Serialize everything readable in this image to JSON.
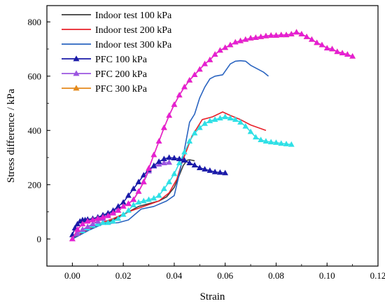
{
  "chart_data": {
    "type": "line",
    "xlabel": "Strain",
    "ylabel": "Stress difference / kPa",
    "xlim": [
      -0.01,
      0.12
    ],
    "ylim": [
      -100,
      860
    ],
    "xticks": [
      "0.00",
      "0.02",
      "0.04",
      "0.06",
      "0.08",
      "0.10",
      "0.12"
    ],
    "yticks": [
      "0",
      "200",
      "400",
      "600",
      "800"
    ],
    "legend_position": "top-left",
    "series": [
      {
        "name": "Indoor test 100 kPa",
        "color": "#3d3d3d",
        "marker": "none",
        "x": [
          0.0,
          0.004,
          0.01,
          0.016,
          0.02,
          0.026,
          0.03,
          0.034,
          0.037,
          0.04,
          0.042,
          0.0435,
          0.045,
          0.046,
          0.047,
          0.048
        ],
        "y": [
          0,
          20,
          50,
          70,
          90,
          120,
          130,
          140,
          155,
          190,
          235,
          270,
          290,
          292,
          290,
          288
        ]
      },
      {
        "name": "Indoor test 200 kPa",
        "color": "#e8202a",
        "marker": "none",
        "x": [
          0.0,
          0.004,
          0.01,
          0.016,
          0.022,
          0.028,
          0.034,
          0.038,
          0.041,
          0.043,
          0.045,
          0.047,
          0.049,
          0.051,
          0.055,
          0.059,
          0.062,
          0.066,
          0.07,
          0.076
        ],
        "y": [
          0,
          25,
          55,
          75,
          100,
          120,
          140,
          170,
          220,
          280,
          330,
          380,
          410,
          440,
          450,
          468,
          455,
          440,
          420,
          400
        ]
      },
      {
        "name": "Indoor test 300 kPa",
        "color": "#2a64c0",
        "marker": "none",
        "x": [
          0.0,
          0.006,
          0.012,
          0.018,
          0.022,
          0.027,
          0.032,
          0.037,
          0.04,
          0.042,
          0.044,
          0.046,
          0.048,
          0.05,
          0.052,
          0.054,
          0.056,
          0.059,
          0.062,
          0.064,
          0.066,
          0.068,
          0.07,
          0.073,
          0.075,
          0.077
        ],
        "y": [
          0,
          30,
          55,
          60,
          70,
          110,
          120,
          140,
          160,
          240,
          330,
          430,
          460,
          520,
          560,
          590,
          600,
          605,
          645,
          655,
          657,
          655,
          640,
          625,
          615,
          600
        ]
      },
      {
        "name": "PFC 100 kPa",
        "color": "#1a1aa8",
        "marker": "triangle",
        "x": [
          0.0,
          0.001,
          0.002,
          0.003,
          0.004,
          0.005,
          0.006,
          0.008,
          0.01,
          0.012,
          0.014,
          0.016,
          0.018,
          0.02,
          0.022,
          0.024,
          0.026,
          0.028,
          0.03,
          0.032,
          0.034,
          0.036,
          0.038,
          0.04,
          0.042,
          0.044,
          0.046,
          0.048,
          0.05,
          0.052,
          0.054,
          0.056,
          0.058,
          0.06
        ],
        "y": [
          15,
          40,
          55,
          65,
          70,
          70,
          72,
          75,
          80,
          88,
          95,
          105,
          120,
          135,
          160,
          185,
          210,
          235,
          255,
          270,
          285,
          295,
          300,
          298,
          295,
          290,
          280,
          272,
          262,
          257,
          252,
          247,
          245,
          243
        ]
      },
      {
        "name": "PFC 200 kPa",
        "color": "#9b55e0",
        "marker": "triangle",
        "x": [
          0.0,
          0.002,
          0.004,
          0.006,
          0.008,
          0.01,
          0.012,
          0.014,
          0.016,
          0.018,
          0.02,
          0.022,
          0.024,
          0.026,
          0.028,
          0.03,
          0.032,
          0.034,
          0.036,
          0.038
        ],
        "y": [
          0,
          20,
          35,
          45,
          55,
          65,
          75,
          90,
          100,
          115,
          120,
          130,
          145,
          175,
          210,
          250,
          268,
          275,
          280,
          282
        ]
      },
      {
        "name": "PFC 300 kPa",
        "color": "#e48a1c",
        "marker": "triangle",
        "x": [
          0.0,
          0.002,
          0.004,
          0.006,
          0.008,
          0.01,
          0.012,
          0.014,
          0.016,
          0.018,
          0.02,
          0.022,
          0.024,
          0.026,
          0.028,
          0.03,
          0.032,
          0.034,
          0.036,
          0.038,
          0.04,
          0.042,
          0.044,
          0.046,
          0.048,
          0.05,
          0.052,
          0.054,
          0.056,
          0.058,
          0.06,
          0.062,
          0.064,
          0.066,
          0.068,
          0.07,
          0.072,
          0.074,
          0.076,
          0.078,
          0.08,
          0.082,
          0.084,
          0.086,
          0.088,
          0.09,
          0.092,
          0.094,
          0.096,
          0.098,
          0.1,
          0.102,
          0.104,
          0.106,
          0.108,
          0.11
        ],
        "y": [
          0,
          35,
          55,
          65,
          70,
          75,
          80,
          85,
          95,
          105,
          120,
          130,
          145,
          175,
          210,
          260,
          310,
          360,
          410,
          455,
          495,
          530,
          560,
          585,
          605,
          625,
          645,
          660,
          680,
          695,
          705,
          715,
          725,
          730,
          735,
          740,
          742,
          745,
          748,
          750,
          750,
          752,
          752,
          755,
          762,
          755,
          745,
          735,
          723,
          715,
          703,
          700,
          690,
          685,
          680,
          673
        ]
      },
      {
        "name": "",
        "color": "#e51fd4",
        "marker": "triangle",
        "x": [
          0.0,
          0.002,
          0.004,
          0.006,
          0.008,
          0.01,
          0.012,
          0.014,
          0.016,
          0.018,
          0.02,
          0.022,
          0.024,
          0.026,
          0.028,
          0.03,
          0.032,
          0.034,
          0.036,
          0.038,
          0.04,
          0.042,
          0.044,
          0.046,
          0.048,
          0.05,
          0.052,
          0.054,
          0.056,
          0.058,
          0.06,
          0.062,
          0.064,
          0.066,
          0.068,
          0.07,
          0.072,
          0.074,
          0.076,
          0.078,
          0.08,
          0.082,
          0.084,
          0.086,
          0.088,
          0.09,
          0.092,
          0.094,
          0.096,
          0.098,
          0.1,
          0.102,
          0.104,
          0.106,
          0.108,
          0.11
        ],
        "y": [
          0,
          35,
          55,
          65,
          70,
          75,
          80,
          85,
          95,
          105,
          120,
          130,
          145,
          175,
          210,
          260,
          310,
          360,
          410,
          455,
          495,
          530,
          560,
          585,
          605,
          625,
          645,
          660,
          680,
          695,
          705,
          715,
          725,
          730,
          735,
          740,
          742,
          745,
          748,
          750,
          750,
          752,
          752,
          755,
          762,
          755,
          745,
          735,
          723,
          715,
          703,
          700,
          690,
          685,
          680,
          673
        ]
      },
      {
        "name": "",
        "color": "#2fe0e6",
        "marker": "triangle",
        "x": [
          0.0,
          0.002,
          0.004,
          0.006,
          0.008,
          0.01,
          0.012,
          0.014,
          0.016,
          0.018,
          0.02,
          0.022,
          0.024,
          0.026,
          0.028,
          0.03,
          0.032,
          0.034,
          0.036,
          0.038,
          0.04,
          0.042,
          0.044,
          0.046,
          0.048,
          0.05,
          0.052,
          0.054,
          0.056,
          0.058,
          0.06,
          0.062,
          0.064,
          0.066,
          0.068,
          0.07,
          0.072,
          0.074,
          0.076,
          0.078,
          0.08,
          0.082,
          0.084,
          0.086
        ],
        "y": [
          0,
          20,
          30,
          40,
          50,
          55,
          60,
          60,
          65,
          75,
          90,
          105,
          125,
          135,
          140,
          145,
          150,
          160,
          185,
          210,
          240,
          280,
          320,
          360,
          390,
          410,
          425,
          435,
          440,
          445,
          450,
          445,
          440,
          430,
          415,
          395,
          375,
          365,
          360,
          357,
          355,
          352,
          350,
          348
        ]
      }
    ],
    "legend": [
      "Indoor test 100 kPa",
      "Indoor test 200 kPa",
      "Indoor test 300 kPa",
      "PFC 100 kPa",
      "PFC 200 kPa",
      "PFC 300 kPa"
    ]
  }
}
